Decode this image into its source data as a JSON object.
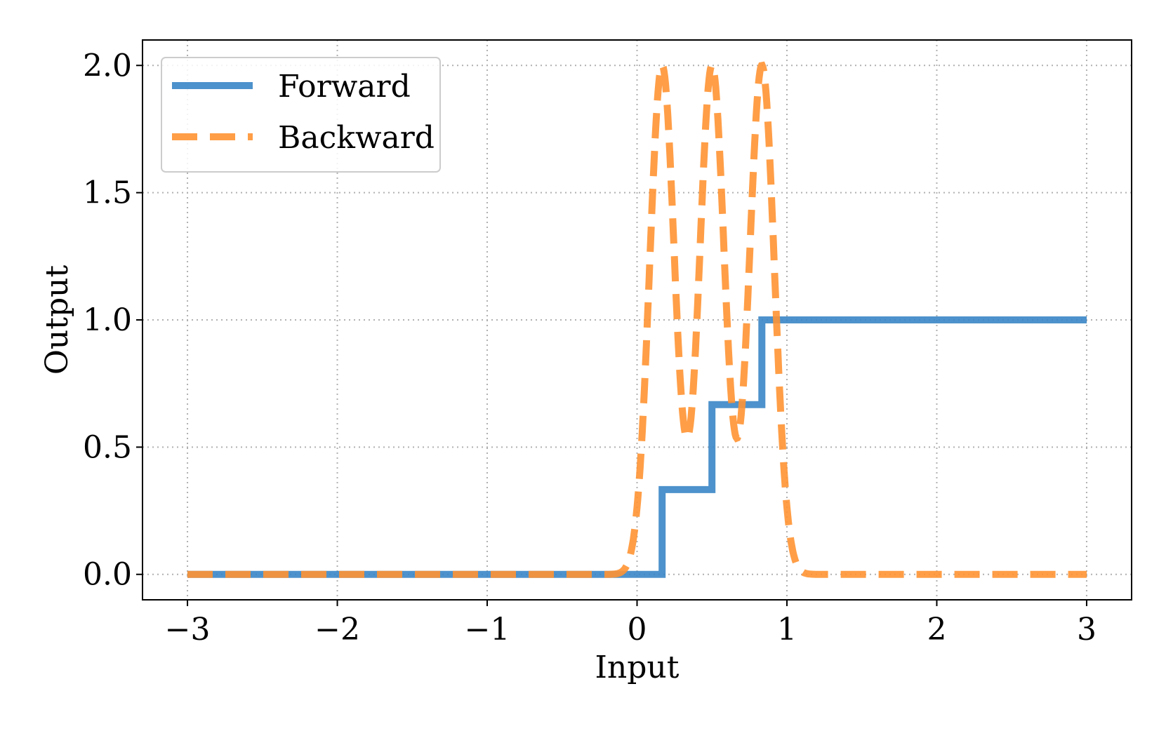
{
  "chart_data": {
    "type": "line",
    "title": "",
    "xlabel": "Input",
    "ylabel": "Output",
    "xlim": [
      -3.3,
      3.3
    ],
    "ylim": [
      -0.1,
      2.1
    ],
    "xticks": [
      -3,
      -2,
      -1,
      0,
      1,
      2,
      3
    ],
    "xtick_labels": [
      "−3",
      "−2",
      "−1",
      "0",
      "1",
      "2",
      "3"
    ],
    "yticks": [
      0.0,
      0.5,
      1.0,
      1.5,
      2.0
    ],
    "ytick_labels": [
      "0.0",
      "0.5",
      "1.0",
      "1.5",
      "2.0"
    ],
    "grid": true,
    "legend_position": "top-left",
    "series": [
      {
        "name": "Forward",
        "style": "solid",
        "color": "#3A86C6",
        "x": [
          -3,
          0.167,
          0.167,
          0.5,
          0.5,
          0.833,
          0.833,
          3
        ],
        "y": [
          0,
          0,
          0.333,
          0.333,
          0.667,
          0.667,
          1.0,
          1.0
        ]
      },
      {
        "name": "Backward",
        "style": "dashed",
        "color": "#FF9433",
        "centers": [
          0.167,
          0.5,
          0.833
        ],
        "peak": 2.0,
        "sigma": 0.083,
        "x_range": [
          -3,
          3
        ]
      }
    ]
  }
}
